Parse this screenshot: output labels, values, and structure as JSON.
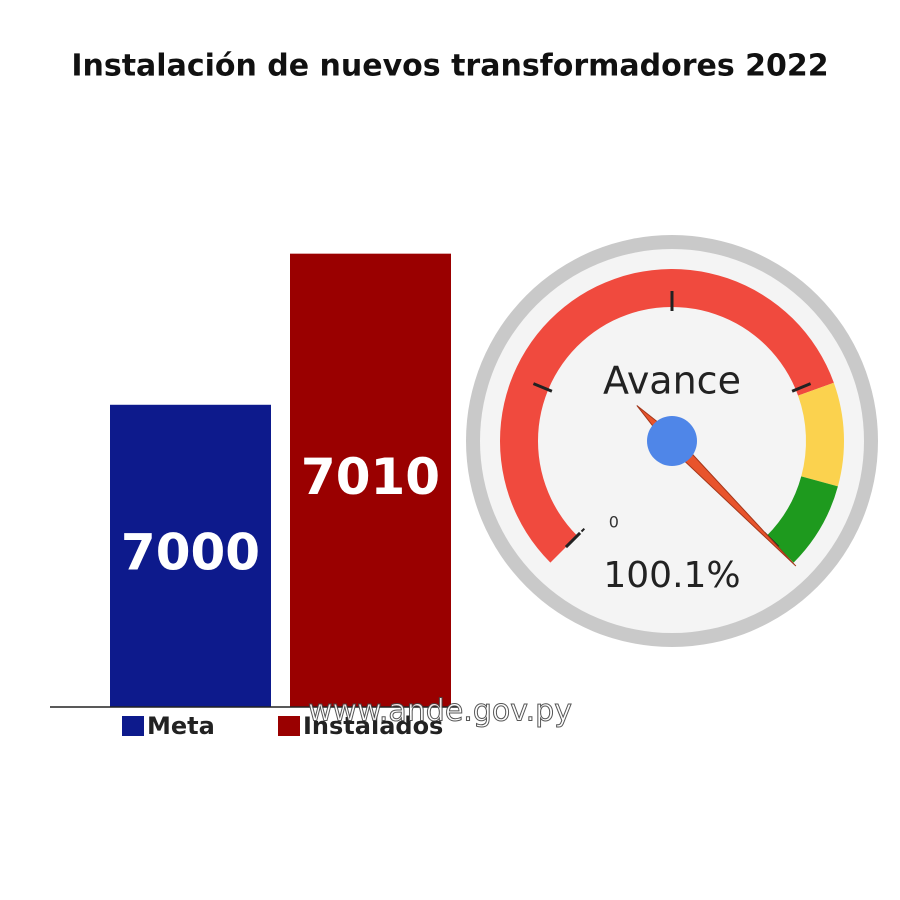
{
  "chart_data": [
    {
      "type": "bar",
      "title": "Instalación de nuevos transformadores 2022",
      "categories": [
        "Meta",
        "Instalados"
      ],
      "values": [
        7000,
        7010
      ],
      "colors": [
        "#0d1a8c",
        "#9a0000"
      ],
      "ylim": [
        6980,
        7016
      ]
    },
    {
      "type": "gauge",
      "label": "Avance",
      "value": 100.1,
      "value_label": "100.1%",
      "range": [
        0,
        100
      ],
      "ticks": [
        0
      ],
      "bands": [
        {
          "from": 0,
          "to": 76,
          "color": "#f04a3e"
        },
        {
          "from": 76,
          "to": 89,
          "color": "#fbd24e"
        },
        {
          "from": 89,
          "to": 100,
          "color": "#1e9a1e"
        }
      ],
      "needle_color": "#e8542c",
      "hub_color": "#4f86e8"
    }
  ],
  "watermark": "www.ande.gov.py"
}
